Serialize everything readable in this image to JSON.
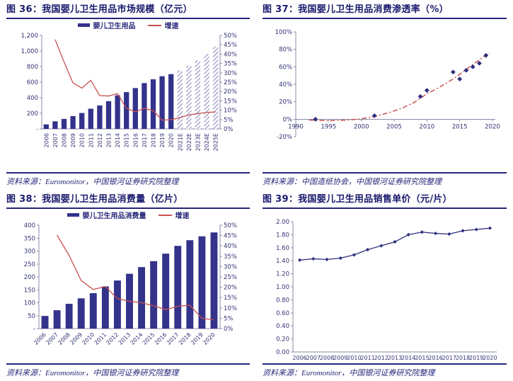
{
  "theme": {
    "navy_bar": "#33338B",
    "red_line": "#C75050",
    "marker_navy": "#2E2E7E",
    "axis_color": "#8B8BA8",
    "tick_text": "#333377",
    "title_color": "#1A1A6E",
    "rule_color": "#26267A"
  },
  "panels": [
    {
      "title": "图 36：我国婴儿卫生用品市场规模（亿元）",
      "legend": [
        "婴儿卫生用品",
        "增速"
      ],
      "source": "资料来源：Euromonitor，中国银河证券研究院整理"
    },
    {
      "title": "图 37：我国婴儿卫生用品消费渗透率（%）",
      "legend": [],
      "source": "资料来源：中国造纸协会，中国银河证券研究院整理"
    },
    {
      "title": "图 38：我国婴儿卫生用品消费量（亿片）",
      "legend": [
        "婴儿卫生用品消费量",
        "增速"
      ],
      "source": "资料来源：Euromonitor，中国银河证券研究院整理"
    },
    {
      "title": "图 39：我国婴儿卫生用品销售单价（元/片）",
      "legend": [],
      "source": "资料来源：Euromonitor，中国银河证券研究院整理"
    }
  ],
  "chart_data": [
    {
      "id": "fig36",
      "type": "bar",
      "title": "我国婴儿卫生用品市场规模（亿元）",
      "xlabel": "",
      "ylabel": "亿元",
      "categories": [
        "2006",
        "2007",
        "2008",
        "2009",
        "2010",
        "2011",
        "2012",
        "2013",
        "2014",
        "2015",
        "2016",
        "2017",
        "2018",
        "2019",
        "2020",
        "2021E",
        "2022E",
        "2023E",
        "2024E",
        "2025E"
      ],
      "series": [
        {
          "name": "婴儿卫生用品",
          "type": "bar",
          "axis": "left",
          "color": "#33338B",
          "hatch_from": 15,
          "values": [
            58,
            97,
            128,
            164,
            204,
            259,
            301,
            356,
            432,
            472,
            524,
            588,
            637,
            676,
            703,
            752,
            813,
            880,
            965,
            1057
          ]
        },
        {
          "name": "增速",
          "type": "line",
          "axis": "right",
          "color": "#C75050",
          "values": [
            null,
            47.8,
            35.8,
            24.6,
            21.8,
            26.0,
            17.8,
            17.6,
            18.9,
            11.0,
            9.1,
            11.0,
            9.8,
            4.7,
            4.9,
            6.0,
            7.5,
            8.2,
            8.8,
            9.1
          ]
        }
      ],
      "axes": {
        "left": {
          "min": 0,
          "max": 1200,
          "ticks": [
            {
              "v": 0,
              "label": "-"
            },
            {
              "v": 200,
              "label": "200"
            },
            {
              "v": 400,
              "label": "400"
            },
            {
              "v": 600,
              "label": "600"
            },
            {
              "v": 800,
              "label": "800"
            },
            {
              "v": 1000,
              "label": "1,000"
            },
            {
              "v": 1200,
              "label": "1,200"
            }
          ]
        },
        "right": {
          "min": 0,
          "max": 50,
          "ticks": [
            {
              "v": 0,
              "label": "0%"
            },
            {
              "v": 5,
              "label": "5%"
            },
            {
              "v": 10,
              "label": "10%"
            },
            {
              "v": 15,
              "label": "15%"
            },
            {
              "v": 20,
              "label": "20%"
            },
            {
              "v": 25,
              "label": "25%"
            },
            {
              "v": 30,
              "label": "30%"
            },
            {
              "v": 35,
              "label": "35%"
            },
            {
              "v": 40,
              "label": "40%"
            },
            {
              "v": 45,
              "label": "45%"
            },
            {
              "v": 50,
              "label": "50%"
            }
          ]
        }
      },
      "layout": {
        "margins": {
          "l": 50,
          "r": 42,
          "t": 6,
          "b": 44
        },
        "xlabel_rotate": -90,
        "legend_position": "top",
        "grid": false
      }
    },
    {
      "id": "fig37",
      "type": "scatter",
      "title": "我国婴儿卫生用品消费渗透率（%）",
      "xlabel": "",
      "ylabel": "%",
      "points": [
        [
          1993,
          0
        ],
        [
          2002,
          4
        ],
        [
          2009,
          26
        ],
        [
          2010,
          33
        ],
        [
          2014,
          54
        ],
        [
          2015,
          46
        ],
        [
          2016,
          56
        ],
        [
          2017,
          60
        ],
        [
          2018,
          64
        ],
        [
          2019,
          73
        ]
      ],
      "trend": [
        [
          1992,
          -1
        ],
        [
          1995,
          -1.8
        ],
        [
          1998,
          -1
        ],
        [
          2000,
          0.5
        ],
        [
          2002,
          3
        ],
        [
          2004,
          7
        ],
        [
          2006,
          12
        ],
        [
          2008,
          19
        ],
        [
          2010,
          29
        ],
        [
          2012,
          37
        ],
        [
          2014,
          46
        ],
        [
          2016,
          57
        ],
        [
          2018,
          68
        ],
        [
          2019.6,
          76
        ]
      ],
      "xlim": [
        1990,
        2020
      ],
      "ylim": [
        -20,
        100
      ],
      "xticks": [
        {
          "v": 1990,
          "label": "1990"
        },
        {
          "v": 1995,
          "label": "1995"
        },
        {
          "v": 2000,
          "label": "2000"
        },
        {
          "v": 2005,
          "label": "2005"
        },
        {
          "v": 2010,
          "label": "2010"
        },
        {
          "v": 2015,
          "label": "2015"
        },
        {
          "v": 2020,
          "label": "2020"
        }
      ],
      "yticks": [
        {
          "v": -20,
          "label": "-20%"
        },
        {
          "v": 0,
          "label": "0%"
        },
        {
          "v": 20,
          "label": "20%"
        },
        {
          "v": 40,
          "label": "40%"
        },
        {
          "v": 60,
          "label": "60%"
        },
        {
          "v": 80,
          "label": "80%"
        },
        {
          "v": 100,
          "label": "100%"
        }
      ],
      "marker_color": "#2E2E7E",
      "trend_color": "#C84848",
      "layout": {
        "margins": {
          "l": 46,
          "r": 20,
          "t": 10,
          "b": 42
        },
        "grid": false,
        "legend_position": "none"
      }
    },
    {
      "id": "fig38",
      "type": "bar",
      "title": "我国婴儿卫生用品消费量（亿片）",
      "xlabel": "",
      "ylabel": "亿片",
      "categories": [
        "2006",
        "2007",
        "2008",
        "2009",
        "2010",
        "2011",
        "2012",
        "2013",
        "2014",
        "2015",
        "2016",
        "2017",
        "2018",
        "2019",
        "2020"
      ],
      "series": [
        {
          "name": "婴儿卫生用品消费量",
          "type": "bar",
          "axis": "left",
          "color": "#33338B",
          "hatch_from": 99,
          "values": [
            49,
            71,
            96,
            117,
            137,
            163,
            186,
            212,
            238,
            261,
            290,
            320,
            342,
            357,
            372
          ]
        },
        {
          "name": "增速",
          "type": "line",
          "axis": "right",
          "color": "#C75050",
          "values": [
            null,
            45.2,
            35.4,
            23.2,
            18.9,
            20.4,
            14.5,
            13.2,
            12.5,
            11.0,
            9.2,
            10.8,
            11.3,
            5.0,
            4.2
          ]
        }
      ],
      "axes": {
        "left": {
          "min": 0,
          "max": 400,
          "ticks": [
            {
              "v": 0,
              "label": "-"
            },
            {
              "v": 50,
              "label": "50"
            },
            {
              "v": 100,
              "label": "100"
            },
            {
              "v": 150,
              "label": "150"
            },
            {
              "v": 200,
              "label": "200"
            },
            {
              "v": 250,
              "label": "250"
            },
            {
              "v": 300,
              "label": "300"
            },
            {
              "v": 350,
              "label": "350"
            },
            {
              "v": 400,
              "label": "400"
            }
          ]
        },
        "right": {
          "min": 0,
          "max": 50,
          "ticks": [
            {
              "v": 0,
              "label": "0%"
            },
            {
              "v": 5,
              "label": "5%"
            },
            {
              "v": 10,
              "label": "10%"
            },
            {
              "v": 15,
              "label": "15%"
            },
            {
              "v": 20,
              "label": "20%"
            },
            {
              "v": 25,
              "label": "25%"
            },
            {
              "v": 30,
              "label": "30%"
            },
            {
              "v": 35,
              "label": "35%"
            },
            {
              "v": 40,
              "label": "40%"
            },
            {
              "v": 45,
              "label": "45%"
            },
            {
              "v": 50,
              "label": "50%"
            }
          ]
        }
      },
      "layout": {
        "margins": {
          "l": 46,
          "r": 42,
          "t": 6,
          "b": 34
        },
        "xlabel_rotate": -45,
        "legend_position": "top",
        "grid": false
      }
    },
    {
      "id": "fig39",
      "type": "line",
      "title": "我国婴儿卫生用品销售单价（元/片）",
      "xlabel": "",
      "ylabel": "元/片",
      "categories": [
        "2006",
        "2007",
        "2008",
        "2009",
        "2010",
        "2011",
        "2012",
        "2013",
        "2014",
        "2015",
        "2016",
        "2017",
        "2018",
        "2019",
        "2020"
      ],
      "values": [
        1.41,
        1.43,
        1.42,
        1.44,
        1.49,
        1.57,
        1.63,
        1.69,
        1.8,
        1.84,
        1.82,
        1.81,
        1.86,
        1.88,
        1.9
      ],
      "ylim": [
        0,
        2
      ],
      "yticks": [
        {
          "v": 0,
          "label": "0.00"
        },
        {
          "v": 0.2,
          "label": "0.20"
        },
        {
          "v": 0.4,
          "label": "0.40"
        },
        {
          "v": 0.6,
          "label": "0.60"
        },
        {
          "v": 0.8,
          "label": "0.80"
        },
        {
          "v": 1.0,
          "label": "1.00"
        },
        {
          "v": 1.2,
          "label": "1.20"
        },
        {
          "v": 1.4,
          "label": "1.40"
        },
        {
          "v": 1.6,
          "label": "1.60"
        },
        {
          "v": 1.8,
          "label": "1.80"
        },
        {
          "v": 2.0,
          "label": "2.00"
        }
      ],
      "color": "#2E2E7E",
      "layout": {
        "margins": {
          "l": 42,
          "r": 14,
          "t": 12,
          "b": 18
        },
        "grid": false,
        "legend_position": "none"
      }
    }
  ]
}
